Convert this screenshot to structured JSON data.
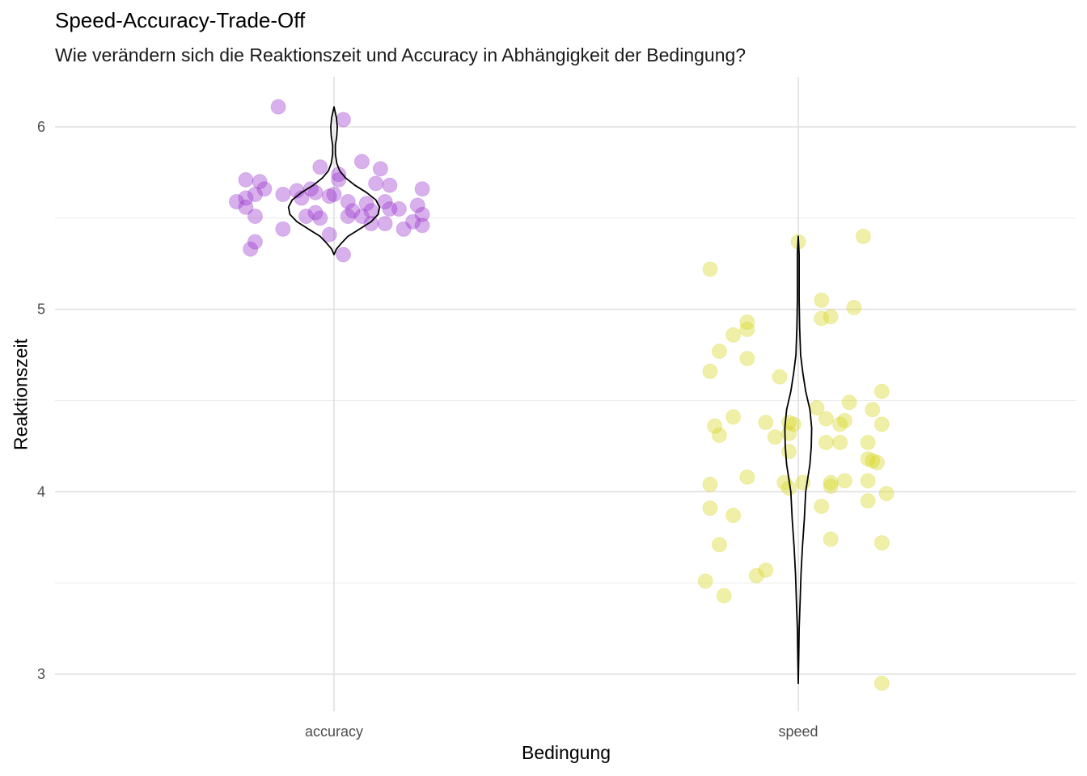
{
  "chart_data": {
    "type": "scatter",
    "subtype": "jitter-with-violin",
    "title": "Speed-Accuracy-Trade-Off",
    "subtitle": "Wie verändern sich die Reaktionszeit und Accuracy in Abhängigkeit der Bedingung?",
    "xlabel": "Bedingung",
    "ylabel": "Reaktionszeit",
    "categories": [
      "accuracy",
      "speed"
    ],
    "ylim": [
      2.8,
      6.25
    ],
    "yticks": [
      3,
      4,
      5,
      6
    ],
    "grid": true,
    "legend": "none",
    "series": [
      {
        "category": "accuracy",
        "color": "#9932cc",
        "points": [
          {
            "x": -0.12,
            "y": 6.11
          },
          {
            "x": 0.02,
            "y": 6.04
          },
          {
            "x": -0.19,
            "y": 5.71
          },
          {
            "x": -0.16,
            "y": 5.7
          },
          {
            "x": -0.15,
            "y": 5.66
          },
          {
            "x": -0.17,
            "y": 5.63
          },
          {
            "x": -0.19,
            "y": 5.61
          },
          {
            "x": -0.21,
            "y": 5.59
          },
          {
            "x": -0.19,
            "y": 5.56
          },
          {
            "x": -0.17,
            "y": 5.51
          },
          {
            "x": -0.11,
            "y": 5.63
          },
          {
            "x": -0.08,
            "y": 5.65
          },
          {
            "x": -0.07,
            "y": 5.61
          },
          {
            "x": -0.05,
            "y": 5.66
          },
          {
            "x": -0.03,
            "y": 5.78
          },
          {
            "x": -0.04,
            "y": 5.64
          },
          {
            "x": -0.01,
            "y": 5.62
          },
          {
            "x": -0.04,
            "y": 5.53
          },
          {
            "x": -0.06,
            "y": 5.51
          },
          {
            "x": -0.03,
            "y": 5.5
          },
          {
            "x": -0.01,
            "y": 5.41
          },
          {
            "x": -0.11,
            "y": 5.44
          },
          {
            "x": 0.0,
            "y": 5.63
          },
          {
            "x": 0.01,
            "y": 5.71
          },
          {
            "x": 0.01,
            "y": 5.74
          },
          {
            "x": 0.03,
            "y": 5.59
          },
          {
            "x": 0.04,
            "y": 5.54
          },
          {
            "x": 0.03,
            "y": 5.51
          },
          {
            "x": 0.06,
            "y": 5.81
          },
          {
            "x": 0.07,
            "y": 5.58
          },
          {
            "x": 0.08,
            "y": 5.54
          },
          {
            "x": 0.06,
            "y": 5.51
          },
          {
            "x": 0.09,
            "y": 5.69
          },
          {
            "x": 0.08,
            "y": 5.47
          },
          {
            "x": 0.1,
            "y": 5.77
          },
          {
            "x": 0.12,
            "y": 5.68
          },
          {
            "x": 0.11,
            "y": 5.59
          },
          {
            "x": 0.12,
            "y": 5.55
          },
          {
            "x": 0.14,
            "y": 5.55
          },
          {
            "x": 0.11,
            "y": 5.47
          },
          {
            "x": 0.15,
            "y": 5.44
          },
          {
            "x": 0.17,
            "y": 5.48
          },
          {
            "x": 0.19,
            "y": 5.52
          },
          {
            "x": 0.18,
            "y": 5.57
          },
          {
            "x": 0.19,
            "y": 5.46
          },
          {
            "x": 0.19,
            "y": 5.66
          },
          {
            "x": -0.17,
            "y": 5.37
          },
          {
            "x": -0.18,
            "y": 5.33
          },
          {
            "x": 0.02,
            "y": 5.3
          }
        ]
      },
      {
        "category": "speed",
        "color": "#d4d41a",
        "points": [
          {
            "x": 0.14,
            "y": 5.4
          },
          {
            "x": 0.0,
            "y": 5.37
          },
          {
            "x": -0.19,
            "y": 5.22
          },
          {
            "x": 0.05,
            "y": 5.05
          },
          {
            "x": 0.12,
            "y": 5.01
          },
          {
            "x": 0.07,
            "y": 4.96
          },
          {
            "x": 0.05,
            "y": 4.95
          },
          {
            "x": -0.11,
            "y": 4.93
          },
          {
            "x": -0.11,
            "y": 4.89
          },
          {
            "x": -0.14,
            "y": 4.86
          },
          {
            "x": -0.17,
            "y": 4.77
          },
          {
            "x": -0.11,
            "y": 4.73
          },
          {
            "x": -0.19,
            "y": 4.66
          },
          {
            "x": -0.04,
            "y": 4.63
          },
          {
            "x": 0.18,
            "y": 4.55
          },
          {
            "x": 0.11,
            "y": 4.49
          },
          {
            "x": 0.04,
            "y": 4.46
          },
          {
            "x": 0.16,
            "y": 4.45
          },
          {
            "x": -0.14,
            "y": 4.41
          },
          {
            "x": 0.06,
            "y": 4.4
          },
          {
            "x": 0.1,
            "y": 4.39
          },
          {
            "x": -0.07,
            "y": 4.38
          },
          {
            "x": -0.02,
            "y": 4.38
          },
          {
            "x": -0.01,
            "y": 4.37
          },
          {
            "x": 0.09,
            "y": 4.37
          },
          {
            "x": 0.18,
            "y": 4.37
          },
          {
            "x": -0.18,
            "y": 4.36
          },
          {
            "x": -0.02,
            "y": 4.32
          },
          {
            "x": -0.17,
            "y": 4.31
          },
          {
            "x": -0.05,
            "y": 4.3
          },
          {
            "x": 0.06,
            "y": 4.27
          },
          {
            "x": 0.09,
            "y": 4.27
          },
          {
            "x": 0.15,
            "y": 4.27
          },
          {
            "x": -0.02,
            "y": 4.22
          },
          {
            "x": 0.15,
            "y": 4.18
          },
          {
            "x": 0.16,
            "y": 4.17
          },
          {
            "x": 0.17,
            "y": 4.16
          },
          {
            "x": -0.11,
            "y": 4.08
          },
          {
            "x": 0.1,
            "y": 4.06
          },
          {
            "x": 0.15,
            "y": 4.06
          },
          {
            "x": -0.03,
            "y": 4.05
          },
          {
            "x": 0.01,
            "y": 4.05
          },
          {
            "x": 0.07,
            "y": 4.05
          },
          {
            "x": -0.19,
            "y": 4.04
          },
          {
            "x": 0.07,
            "y": 4.03
          },
          {
            "x": -0.02,
            "y": 4.02
          },
          {
            "x": 0.19,
            "y": 3.99
          },
          {
            "x": 0.15,
            "y": 3.95
          },
          {
            "x": 0.05,
            "y": 3.92
          },
          {
            "x": -0.19,
            "y": 3.91
          },
          {
            "x": -0.14,
            "y": 3.87
          },
          {
            "x": 0.07,
            "y": 3.74
          },
          {
            "x": 0.18,
            "y": 3.72
          },
          {
            "x": -0.17,
            "y": 3.71
          },
          {
            "x": -0.07,
            "y": 3.57
          },
          {
            "x": -0.09,
            "y": 3.54
          },
          {
            "x": -0.2,
            "y": 3.51
          },
          {
            "x": -0.16,
            "y": 3.43
          },
          {
            "x": 0.18,
            "y": 2.95
          }
        ]
      }
    ],
    "violins": [
      {
        "category": "accuracy",
        "profile": [
          [
            5.3,
            0.0
          ],
          [
            5.33,
            0.005
          ],
          [
            5.36,
            0.015
          ],
          [
            5.4,
            0.03
          ],
          [
            5.44,
            0.055
          ],
          [
            5.48,
            0.08
          ],
          [
            5.52,
            0.095
          ],
          [
            5.56,
            0.098
          ],
          [
            5.6,
            0.09
          ],
          [
            5.64,
            0.07
          ],
          [
            5.68,
            0.045
          ],
          [
            5.72,
            0.025
          ],
          [
            5.76,
            0.012
          ],
          [
            5.8,
            0.006
          ],
          [
            5.85,
            0.003
          ],
          [
            5.9,
            0.003
          ],
          [
            5.95,
            0.006
          ],
          [
            6.0,
            0.007
          ],
          [
            6.05,
            0.005
          ],
          [
            6.11,
            0.0
          ]
        ]
      },
      {
        "category": "speed",
        "profile": [
          [
            2.95,
            0.0
          ],
          [
            3.1,
            0.001
          ],
          [
            3.25,
            0.002
          ],
          [
            3.4,
            0.004
          ],
          [
            3.55,
            0.006
          ],
          [
            3.7,
            0.009
          ],
          [
            3.85,
            0.013
          ],
          [
            4.0,
            0.016
          ],
          [
            4.15,
            0.025
          ],
          [
            4.25,
            0.028
          ],
          [
            4.35,
            0.029
          ],
          [
            4.45,
            0.025
          ],
          [
            4.55,
            0.016
          ],
          [
            4.65,
            0.01
          ],
          [
            4.75,
            0.005
          ],
          [
            4.9,
            0.003
          ],
          [
            5.05,
            0.002
          ],
          [
            5.2,
            0.002
          ],
          [
            5.3,
            0.002
          ],
          [
            5.4,
            0.0
          ]
        ]
      }
    ]
  }
}
